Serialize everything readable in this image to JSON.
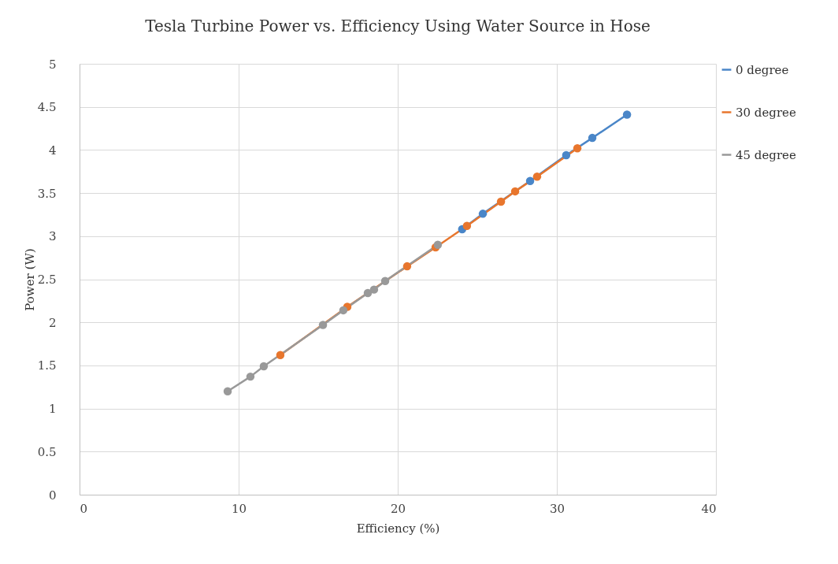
{
  "chart_data": {
    "type": "line",
    "title": "Tesla Turbine Power vs. Efficiency Using Water Source in Hose",
    "xlabel": "Efficiency (%)",
    "ylabel": "Power (W)",
    "xlim": [
      0,
      40
    ],
    "xticks": [
      0,
      10,
      20,
      30,
      40
    ],
    "ylim": [
      0,
      5
    ],
    "yticks": [
      0,
      0.5,
      1,
      1.5,
      2,
      2.5,
      3,
      3.5,
      4,
      4.5,
      5
    ],
    "grid": true,
    "legend": "right",
    "marker": "circle",
    "line_style": "solid",
    "series": [
      {
        "name": "0 degree",
        "color": "#4a86c8",
        "x": [
          24.05,
          25.35,
          28.32,
          30.59,
          32.23,
          34.41
        ],
        "values": [
          3.08,
          3.26,
          3.64,
          3.94,
          4.14,
          4.41
        ]
      },
      {
        "name": "30 degree",
        "color": "#e8762d",
        "x": [
          12.62,
          16.83,
          20.59,
          22.38,
          24.35,
          26.49,
          27.38,
          28.76,
          31.29
        ],
        "values": [
          1.62,
          2.18,
          2.65,
          2.87,
          3.12,
          3.4,
          3.52,
          3.69,
          4.02
        ]
      },
      {
        "name": "45 degree",
        "color": "#999999",
        "x": [
          9.31,
          10.74,
          11.58,
          15.3,
          16.58,
          18.12,
          18.51,
          19.21,
          22.52
        ],
        "values": [
          1.2,
          1.37,
          1.49,
          1.97,
          2.14,
          2.34,
          2.38,
          2.48,
          2.9
        ]
      }
    ]
  }
}
